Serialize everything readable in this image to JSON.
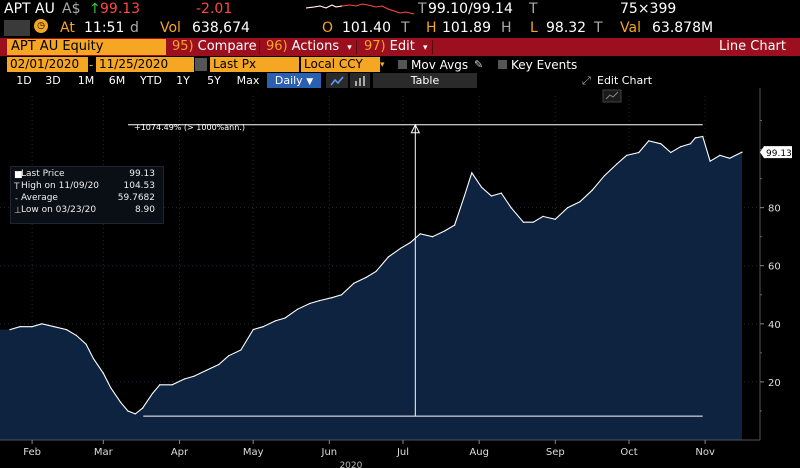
{
  "quote": {
    "ticker": "APT AU",
    "currency": "A$",
    "price": "99.13",
    "change": "-2.01",
    "bid_ask_prefix": "T",
    "bid_ask": "99.10/99.14",
    "bid_ask_suffix": "T",
    "size": "75×399",
    "at_label": "At",
    "time": "11:51",
    "time_suffix": "d",
    "vol_label": "Vol",
    "volume": "638,674",
    "open_label": "O",
    "open": "101.40",
    "open_suffix": "T",
    "high_label": "H",
    "high": "101.89",
    "high_suffix": "H",
    "low_label": "L",
    "low": "98.32",
    "low_suffix": "T",
    "val_label": "Val",
    "value": "63.878M"
  },
  "menubar": {
    "security": "APT AU Equity",
    "compare_num": "95)",
    "compare": "Compare",
    "actions_num": "96)",
    "actions": "Actions",
    "edit_num": "97)",
    "edit": "Edit",
    "chart_type": "Line Chart"
  },
  "daterow": {
    "start": "02/01/2020",
    "end": "11/25/2020",
    "field": "Last Px",
    "currency": "Local CCY",
    "mov_avgs": "Mov Avgs",
    "key_events": "Key Events"
  },
  "periods": [
    "1D",
    "3D",
    "1M",
    "6M",
    "YTD",
    "1Y",
    "5Y",
    "Max"
  ],
  "frequency": "Daily",
  "table_label": "Table",
  "edit_chart_label": "Edit Chart",
  "legend": {
    "last_price_label": "Last Price",
    "last_price": "99.13",
    "high_label": "High on 11/09/20",
    "high": "104.53",
    "average_label": "Average",
    "average": "59.7682",
    "low_label": "Low on 03/23/20",
    "low": "8.90"
  },
  "annotation": "+1074.49% (> 1000%ann.)",
  "last_price_tag": "99.13",
  "colors": {
    "accent": "#f5a623",
    "menu_bar": "#9b0f1f",
    "down": "#ff4a3d",
    "up": "#2ecc40",
    "area_fill": "#0d2340",
    "line": "#ffffff",
    "selected": "#2b5fb0"
  },
  "chart_data": {
    "type": "area",
    "xlabel": "2020",
    "ylabel": "",
    "ylim": [
      0,
      115
    ],
    "yticks": [
      20,
      40,
      60,
      80
    ],
    "grid": true,
    "month_labels": [
      "Feb",
      "Mar",
      "Apr",
      "May",
      "Jun",
      "Jul",
      "Aug",
      "Sep",
      "Oct",
      "Nov"
    ],
    "month_tick_dates": [
      "2020-02-10",
      "2020-03-10",
      "2020-04-10",
      "2020-05-10",
      "2020-06-10",
      "2020-07-10",
      "2020-08-10",
      "2020-09-10",
      "2020-10-10",
      "2020-11-10"
    ],
    "x": [
      "2020-02-01",
      "2020-02-05",
      "2020-02-10",
      "2020-02-14",
      "2020-02-19",
      "2020-02-24",
      "2020-02-28",
      "2020-03-03",
      "2020-03-06",
      "2020-03-10",
      "2020-03-13",
      "2020-03-17",
      "2020-03-20",
      "2020-03-23",
      "2020-03-26",
      "2020-03-30",
      "2020-04-02",
      "2020-04-07",
      "2020-04-12",
      "2020-04-16",
      "2020-04-21",
      "2020-04-26",
      "2020-04-30",
      "2020-05-05",
      "2020-05-10",
      "2020-05-14",
      "2020-05-19",
      "2020-05-23",
      "2020-05-28",
      "2020-06-02",
      "2020-06-06",
      "2020-06-11",
      "2020-06-15",
      "2020-06-20",
      "2020-06-25",
      "2020-06-29",
      "2020-07-04",
      "2020-07-09",
      "2020-07-13",
      "2020-07-17",
      "2020-07-22",
      "2020-07-27",
      "2020-07-31",
      "2020-08-04",
      "2020-08-07",
      "2020-08-11",
      "2020-08-15",
      "2020-08-19",
      "2020-08-23",
      "2020-08-28",
      "2020-09-01",
      "2020-09-05",
      "2020-09-10",
      "2020-09-15",
      "2020-09-20",
      "2020-09-25",
      "2020-09-30",
      "2020-10-05",
      "2020-10-09",
      "2020-10-14",
      "2020-10-18",
      "2020-10-23",
      "2020-10-27",
      "2020-10-31",
      "2020-11-04",
      "2020-11-06",
      "2020-11-09",
      "2020-11-12",
      "2020-11-16",
      "2020-11-20",
      "2020-11-25"
    ],
    "series": [
      {
        "values": [
          38,
          39,
          39,
          40,
          39,
          38,
          36,
          33,
          28,
          23,
          18,
          13,
          10,
          9,
          11,
          16,
          19,
          19,
          21,
          22,
          24,
          26,
          29,
          31,
          38,
          39,
          41,
          42,
          45,
          47,
          48,
          49,
          50,
          54,
          56,
          58,
          63,
          66,
          68,
          71,
          70,
          72,
          74,
          84,
          92,
          87,
          84,
          85,
          80,
          75,
          75,
          77,
          76,
          80,
          82,
          86,
          91,
          95,
          98,
          99,
          103,
          102,
          99,
          101,
          102,
          104,
          104.5,
          96,
          98,
          97,
          99.13
        ]
      }
    ],
    "measure": {
      "from_date": "2020-03-23",
      "from_value": 8.9,
      "to_date": "2020-11-09",
      "to_value": 104.53,
      "label": "+1074.49% (> 1000%ann.)"
    }
  }
}
